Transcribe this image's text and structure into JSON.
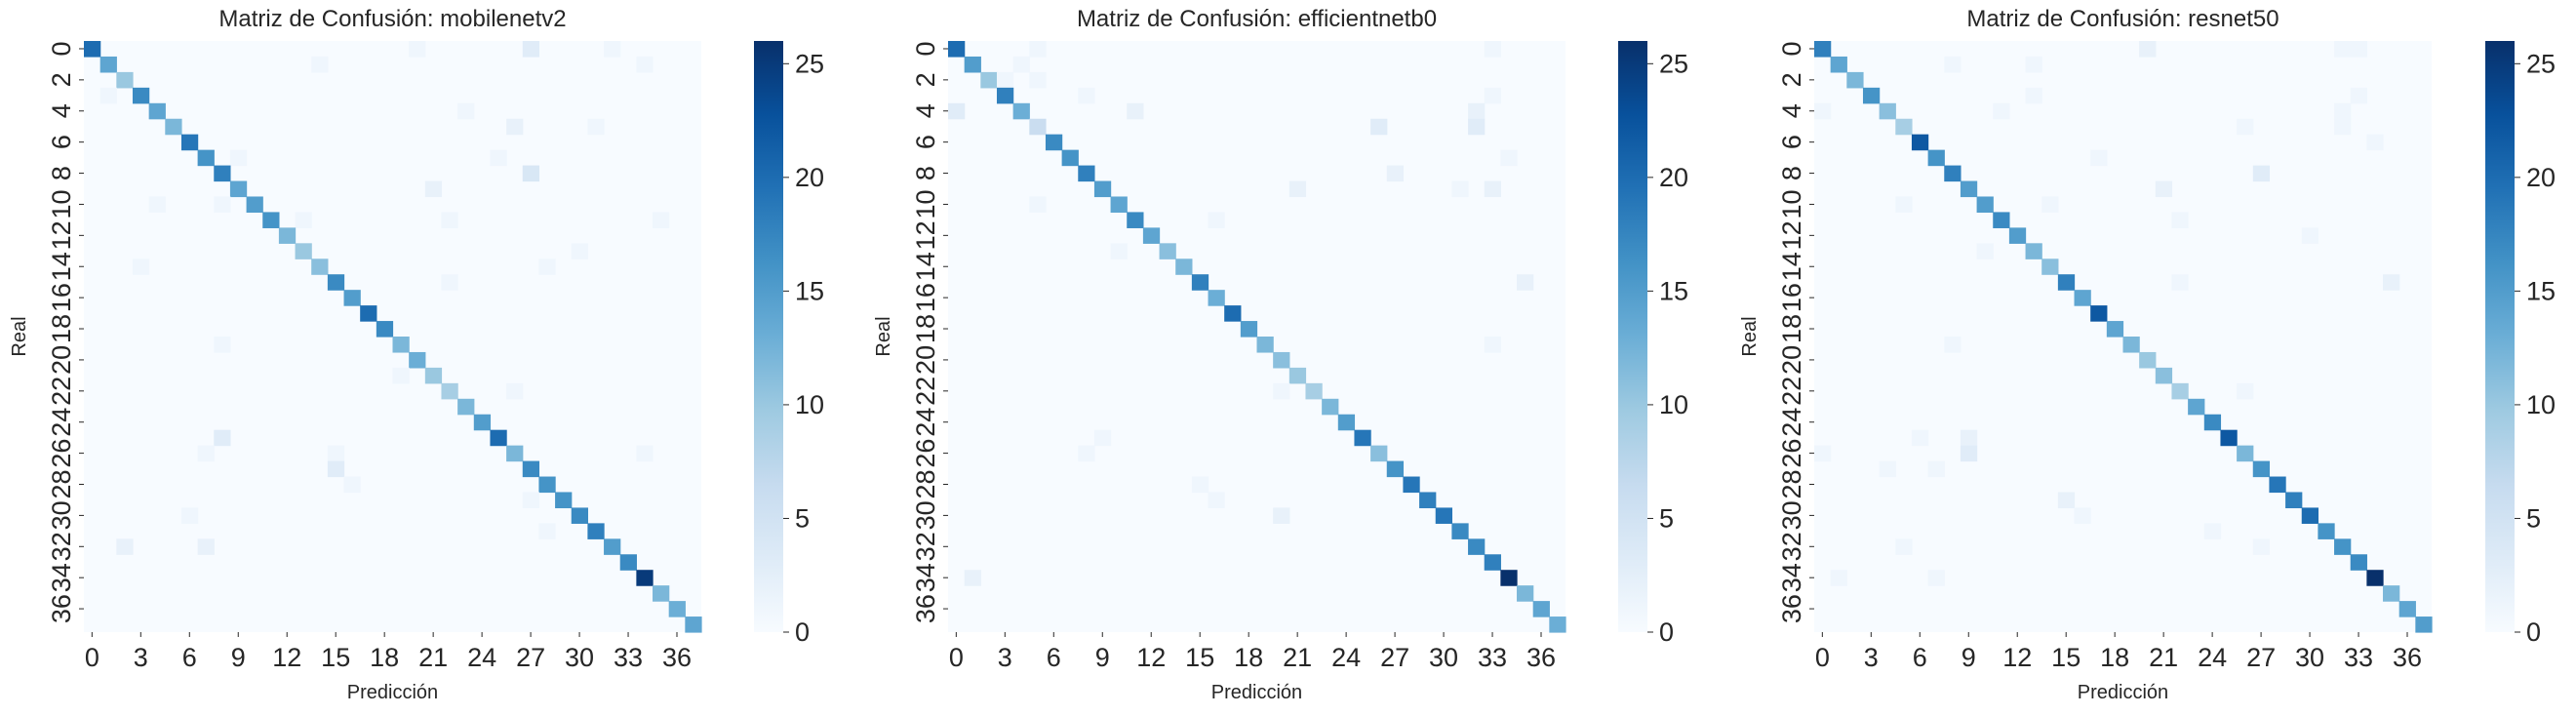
{
  "chart_data": [
    {
      "type": "heatmap",
      "title": "Matriz de Confusión: mobilenetv2",
      "xlabel": "Predicción",
      "ylabel": "Real",
      "n_classes": 38,
      "x_ticks": [
        "0",
        "3",
        "6",
        "9",
        "12",
        "15",
        "18",
        "21",
        "24",
        "27",
        "30",
        "33",
        "36"
      ],
      "y_ticks": [
        "0",
        "2",
        "4",
        "6",
        "8",
        "10",
        "12",
        "14",
        "16",
        "18",
        "20",
        "22",
        "24",
        "26",
        "28",
        "30",
        "32",
        "34",
        "36"
      ],
      "colorbar": {
        "ticks": [
          "0",
          "5",
          "10",
          "15",
          "20",
          "25"
        ],
        "min": 0,
        "max": 26,
        "colormap": "Blues"
      },
      "diagonal": [
        20,
        14,
        10,
        17,
        14,
        12,
        19,
        16,
        18,
        14,
        15,
        16,
        12,
        10,
        11,
        17,
        15,
        20,
        17,
        12,
        13,
        10,
        9,
        12,
        15,
        20,
        12,
        17,
        16,
        16,
        17,
        18,
        15,
        17,
        25,
        12,
        13,
        14
      ],
      "off_diagonal": [
        {
          "row": 0,
          "col": 27,
          "value": 3
        },
        {
          "row": 0,
          "col": 20,
          "value": 1
        },
        {
          "row": 0,
          "col": 32,
          "value": 1
        },
        {
          "row": 1,
          "col": 14,
          "value": 1
        },
        {
          "row": 1,
          "col": 34,
          "value": 1
        },
        {
          "row": 3,
          "col": 1,
          "value": 1
        },
        {
          "row": 4,
          "col": 23,
          "value": 1
        },
        {
          "row": 5,
          "col": 26,
          "value": 2
        },
        {
          "row": 5,
          "col": 31,
          "value": 1
        },
        {
          "row": 7,
          "col": 25,
          "value": 1
        },
        {
          "row": 7,
          "col": 9,
          "value": 1
        },
        {
          "row": 8,
          "col": 27,
          "value": 4
        },
        {
          "row": 9,
          "col": 21,
          "value": 2
        },
        {
          "row": 10,
          "col": 4,
          "value": 1
        },
        {
          "row": 10,
          "col": 8,
          "value": 1
        },
        {
          "row": 11,
          "col": 35,
          "value": 1
        },
        {
          "row": 11,
          "col": 13,
          "value": 1
        },
        {
          "row": 11,
          "col": 22,
          "value": 1
        },
        {
          "row": 13,
          "col": 30,
          "value": 1
        },
        {
          "row": 14,
          "col": 3,
          "value": 1
        },
        {
          "row": 14,
          "col": 28,
          "value": 1
        },
        {
          "row": 15,
          "col": 22,
          "value": 1
        },
        {
          "row": 19,
          "col": 8,
          "value": 1
        },
        {
          "row": 21,
          "col": 19,
          "value": 1
        },
        {
          "row": 22,
          "col": 26,
          "value": 1
        },
        {
          "row": 25,
          "col": 8,
          "value": 3
        },
        {
          "row": 26,
          "col": 7,
          "value": 1
        },
        {
          "row": 26,
          "col": 15,
          "value": 1
        },
        {
          "row": 26,
          "col": 34,
          "value": 1
        },
        {
          "row": 27,
          "col": 15,
          "value": 3
        },
        {
          "row": 28,
          "col": 16,
          "value": 1
        },
        {
          "row": 29,
          "col": 27,
          "value": 1
        },
        {
          "row": 30,
          "col": 6,
          "value": 1
        },
        {
          "row": 31,
          "col": 28,
          "value": 1
        },
        {
          "row": 32,
          "col": 2,
          "value": 2
        },
        {
          "row": 32,
          "col": 7,
          "value": 2
        }
      ]
    },
    {
      "type": "heatmap",
      "title": "Matriz de Confusión: efficientnetb0",
      "xlabel": "Predicción",
      "ylabel": "Real",
      "n_classes": 38,
      "x_ticks": [
        "0",
        "3",
        "6",
        "9",
        "12",
        "15",
        "18",
        "21",
        "24",
        "27",
        "30",
        "33",
        "36"
      ],
      "y_ticks": [
        "0",
        "2",
        "4",
        "6",
        "8",
        "10",
        "12",
        "14",
        "16",
        "18",
        "20",
        "22",
        "24",
        "26",
        "28",
        "30",
        "32",
        "34",
        "36"
      ],
      "colorbar": {
        "ticks": [
          "0",
          "5",
          "10",
          "15",
          "20",
          "25"
        ],
        "min": 0,
        "max": 26,
        "colormap": "Blues"
      },
      "diagonal": [
        20,
        15,
        10,
        18,
        13,
        6,
        17,
        16,
        18,
        15,
        14,
        17,
        14,
        11,
        12,
        18,
        13,
        20,
        15,
        12,
        11,
        10,
        9,
        12,
        15,
        19,
        11,
        16,
        19,
        18,
        19,
        17,
        17,
        18,
        26,
        12,
        14,
        13
      ],
      "off_diagonal": [
        {
          "row": 0,
          "col": 5,
          "value": 1
        },
        {
          "row": 0,
          "col": 33,
          "value": 1
        },
        {
          "row": 1,
          "col": 4,
          "value": 1
        },
        {
          "row": 2,
          "col": 3,
          "value": 1
        },
        {
          "row": 2,
          "col": 5,
          "value": 1
        },
        {
          "row": 3,
          "col": 8,
          "value": 1
        },
        {
          "row": 3,
          "col": 33,
          "value": 1
        },
        {
          "row": 4,
          "col": 0,
          "value": 3
        },
        {
          "row": 4,
          "col": 11,
          "value": 2
        },
        {
          "row": 4,
          "col": 32,
          "value": 2
        },
        {
          "row": 5,
          "col": 26,
          "value": 3
        },
        {
          "row": 5,
          "col": 32,
          "value": 3
        },
        {
          "row": 7,
          "col": 34,
          "value": 1
        },
        {
          "row": 8,
          "col": 27,
          "value": 2
        },
        {
          "row": 9,
          "col": 21,
          "value": 2
        },
        {
          "row": 9,
          "col": 31,
          "value": 1
        },
        {
          "row": 9,
          "col": 33,
          "value": 2
        },
        {
          "row": 10,
          "col": 5,
          "value": 1
        },
        {
          "row": 11,
          "col": 16,
          "value": 1
        },
        {
          "row": 13,
          "col": 10,
          "value": 1
        },
        {
          "row": 15,
          "col": 35,
          "value": 2
        },
        {
          "row": 19,
          "col": 33,
          "value": 1
        },
        {
          "row": 22,
          "col": 20,
          "value": 1
        },
        {
          "row": 25,
          "col": 9,
          "value": 1
        },
        {
          "row": 26,
          "col": 8,
          "value": 1
        },
        {
          "row": 28,
          "col": 15,
          "value": 1
        },
        {
          "row": 29,
          "col": 16,
          "value": 1
        },
        {
          "row": 30,
          "col": 20,
          "value": 2
        },
        {
          "row": 34,
          "col": 1,
          "value": 2
        }
      ]
    },
    {
      "type": "heatmap",
      "title": "Matriz de Confusión: resnet50",
      "xlabel": "Predicción",
      "ylabel": "Real",
      "n_classes": 38,
      "x_ticks": [
        "0",
        "3",
        "6",
        "9",
        "12",
        "15",
        "18",
        "21",
        "24",
        "27",
        "30",
        "33",
        "36"
      ],
      "y_ticks": [
        "0",
        "2",
        "4",
        "6",
        "8",
        "10",
        "12",
        "14",
        "16",
        "18",
        "20",
        "22",
        "24",
        "26",
        "28",
        "30",
        "32",
        "34",
        "36"
      ],
      "colorbar": {
        "ticks": [
          "0",
          "5",
          "10",
          "15",
          "20",
          "25"
        ],
        "min": 0,
        "max": 26,
        "colormap": "Blues"
      },
      "diagonal": [
        18,
        14,
        12,
        16,
        11,
        9,
        22,
        16,
        18,
        15,
        15,
        17,
        15,
        12,
        11,
        18,
        14,
        22,
        14,
        12,
        10,
        11,
        9,
        14,
        17,
        22,
        12,
        16,
        19,
        18,
        20,
        16,
        16,
        17,
        26,
        12,
        14,
        15
      ],
      "off_diagonal": [
        {
          "row": 0,
          "col": 20,
          "value": 2
        },
        {
          "row": 0,
          "col": 32,
          "value": 1
        },
        {
          "row": 0,
          "col": 33,
          "value": 1
        },
        {
          "row": 1,
          "col": 8,
          "value": 1
        },
        {
          "row": 1,
          "col": 13,
          "value": 1
        },
        {
          "row": 3,
          "col": 13,
          "value": 1
        },
        {
          "row": 3,
          "col": 33,
          "value": 1
        },
        {
          "row": 4,
          "col": 0,
          "value": 1
        },
        {
          "row": 4,
          "col": 11,
          "value": 1
        },
        {
          "row": 4,
          "col": 32,
          "value": 1
        },
        {
          "row": 5,
          "col": 26,
          "value": 1
        },
        {
          "row": 5,
          "col": 32,
          "value": 1
        },
        {
          "row": 6,
          "col": 34,
          "value": 1
        },
        {
          "row": 7,
          "col": 17,
          "value": 1
        },
        {
          "row": 8,
          "col": 27,
          "value": 3
        },
        {
          "row": 9,
          "col": 21,
          "value": 2
        },
        {
          "row": 10,
          "col": 5,
          "value": 1
        },
        {
          "row": 10,
          "col": 14,
          "value": 1
        },
        {
          "row": 11,
          "col": 22,
          "value": 1
        },
        {
          "row": 12,
          "col": 30,
          "value": 1
        },
        {
          "row": 13,
          "col": 10,
          "value": 1
        },
        {
          "row": 15,
          "col": 22,
          "value": 1
        },
        {
          "row": 15,
          "col": 35,
          "value": 2
        },
        {
          "row": 19,
          "col": 8,
          "value": 1
        },
        {
          "row": 22,
          "col": 26,
          "value": 1
        },
        {
          "row": 25,
          "col": 6,
          "value": 1
        },
        {
          "row": 25,
          "col": 9,
          "value": 2
        },
        {
          "row": 26,
          "col": 0,
          "value": 1
        },
        {
          "row": 26,
          "col": 9,
          "value": 3
        },
        {
          "row": 27,
          "col": 4,
          "value": 1
        },
        {
          "row": 27,
          "col": 7,
          "value": 1
        },
        {
          "row": 29,
          "col": 15,
          "value": 2
        },
        {
          "row": 30,
          "col": 16,
          "value": 1
        },
        {
          "row": 31,
          "col": 24,
          "value": 1
        },
        {
          "row": 32,
          "col": 5,
          "value": 1
        },
        {
          "row": 32,
          "col": 27,
          "value": 1
        },
        {
          "row": 34,
          "col": 1,
          "value": 1
        },
        {
          "row": 34,
          "col": 7,
          "value": 1
        }
      ]
    }
  ]
}
